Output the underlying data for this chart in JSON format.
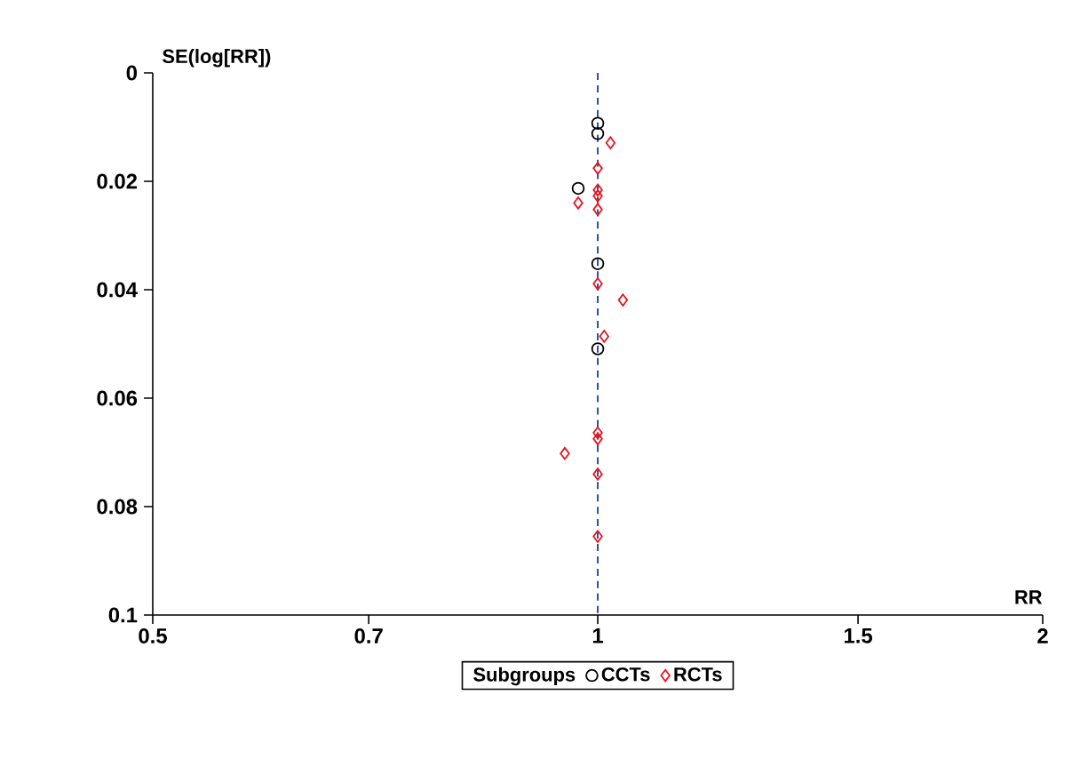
{
  "chart_data": {
    "type": "scatter",
    "xlabel": "RR",
    "ylabel": "SE(log[RR])",
    "legend_title": "Subgroups",
    "log": "x",
    "xlim": [
      0.5,
      2
    ],
    "xticks": [
      0.5,
      0.7,
      1,
      1.5,
      2
    ],
    "ylim": [
      0.1,
      0
    ],
    "yticks": [
      0,
      0.02,
      0.04,
      0.06,
      0.08,
      0.1
    ],
    "grid": false,
    "legend": "bottom",
    "ref_lines": [
      {
        "axis": "x",
        "value": 1,
        "color": "#2f4fa0",
        "line_style": "dashed"
      }
    ],
    "series": [
      {
        "name": "CCTs",
        "color": "#000000",
        "marker": "circle",
        "x": [
          1.0,
          1.0,
          0.97,
          1.0,
          1.0
        ],
        "values": [
          0.0093,
          0.0112,
          0.0213,
          0.0352,
          0.0509
        ]
      },
      {
        "name": "RCTs",
        "color": "#e8141c",
        "marker": "diamond",
        "x": [
          1.02,
          1.0,
          1.0,
          1.0,
          0.97,
          1.0,
          1.0,
          1.04,
          1.01,
          1.0,
          1.0,
          0.95,
          1.0,
          1.0
        ],
        "values": [
          0.0129,
          0.0176,
          0.0216,
          0.0227,
          0.024,
          0.0252,
          0.0389,
          0.0419,
          0.0486,
          0.0664,
          0.0675,
          0.0702,
          0.074,
          0.0855
        ]
      }
    ]
  }
}
